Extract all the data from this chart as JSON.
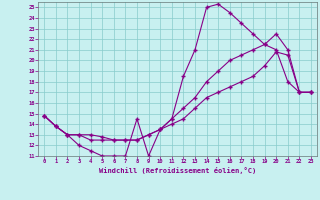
{
  "title": "",
  "xlabel": "Windchill (Refroidissement éolien,°C)",
  "bg_color": "#c8f0f0",
  "line_color": "#880088",
  "grid_color": "#aadddd",
  "xlim": [
    -0.5,
    23.5
  ],
  "ylim": [
    11,
    25.5
  ],
  "xticks": [
    0,
    1,
    2,
    3,
    4,
    5,
    6,
    7,
    8,
    9,
    10,
    11,
    12,
    13,
    14,
    15,
    16,
    17,
    18,
    19,
    20,
    21,
    22,
    23
  ],
  "yticks": [
    11,
    12,
    13,
    14,
    15,
    16,
    17,
    18,
    19,
    20,
    21,
    22,
    23,
    24,
    25
  ],
  "line1_x": [
    0,
    1,
    2,
    3,
    4,
    5,
    6,
    7,
    8,
    9,
    10,
    11,
    12,
    13,
    14,
    15,
    16,
    17,
    18,
    19,
    20,
    21,
    22,
    23
  ],
  "line1_y": [
    14.8,
    13.8,
    13.0,
    12.0,
    11.5,
    11.0,
    11.0,
    11.0,
    14.5,
    11.0,
    13.5,
    14.5,
    18.5,
    21.0,
    25.0,
    25.3,
    24.5,
    23.5,
    22.5,
    21.5,
    21.0,
    18.0,
    17.0,
    17.0
  ],
  "line2_x": [
    0,
    1,
    2,
    3,
    4,
    5,
    6,
    7,
    8,
    9,
    10,
    11,
    12,
    13,
    14,
    15,
    16,
    17,
    18,
    19,
    20,
    21,
    22,
    23
  ],
  "line2_y": [
    14.8,
    13.8,
    13.0,
    13.0,
    12.5,
    12.5,
    12.5,
    12.5,
    12.5,
    13.0,
    13.5,
    14.5,
    15.5,
    16.5,
    18.0,
    19.0,
    20.0,
    20.5,
    21.0,
    21.5,
    22.5,
    21.0,
    17.0,
    17.0
  ],
  "line3_x": [
    0,
    1,
    2,
    3,
    4,
    5,
    6,
    7,
    8,
    9,
    10,
    11,
    12,
    13,
    14,
    15,
    16,
    17,
    18,
    19,
    20,
    21,
    22,
    23
  ],
  "line3_y": [
    14.8,
    13.8,
    13.0,
    13.0,
    13.0,
    12.8,
    12.5,
    12.5,
    12.5,
    13.0,
    13.5,
    14.0,
    14.5,
    15.5,
    16.5,
    17.0,
    17.5,
    18.0,
    18.5,
    19.5,
    20.8,
    20.5,
    17.0,
    17.0
  ]
}
